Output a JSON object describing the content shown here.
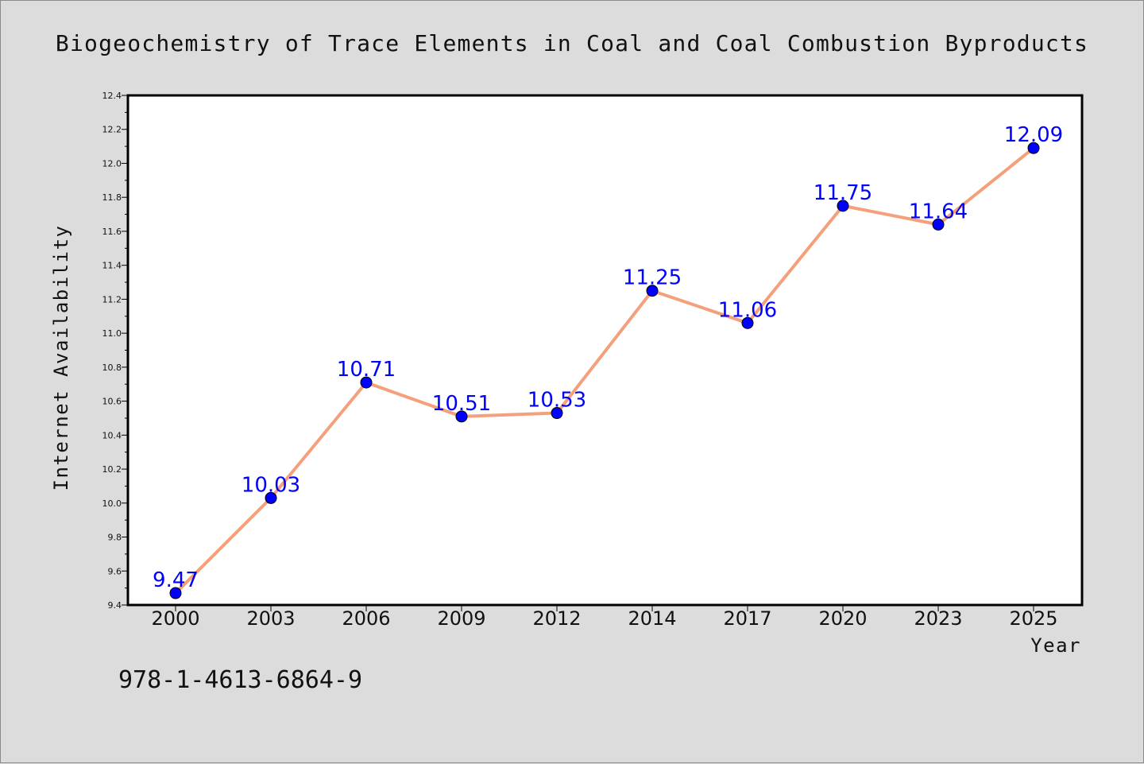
{
  "chart_data": {
    "type": "line",
    "title": "Biogeochemistry of Trace Elements in Coal and Coal Combustion Byproducts",
    "xlabel": "Year",
    "ylabel": "Internet Availability",
    "categories": [
      "2000",
      "2003",
      "2006",
      "2009",
      "2012",
      "2014",
      "2017",
      "2020",
      "2023",
      "2025"
    ],
    "values": [
      9.47,
      10.03,
      10.71,
      10.51,
      10.53,
      11.25,
      11.06,
      11.75,
      11.64,
      12.09
    ],
    "data_labels": [
      "9.47",
      "10.03",
      "10.71",
      "10.51",
      "10.53",
      "11.25",
      "11.06",
      "11.75",
      "11.64",
      "12.09"
    ],
    "ylim": [
      9.4,
      12.4
    ],
    "yticks": [
      "9.4",
      "9.6",
      "9.8",
      "10.0",
      "10.2",
      "10.4",
      "10.6",
      "10.8",
      "11.0",
      "11.2",
      "11.4",
      "11.6",
      "11.8",
      "12.0",
      "12.2",
      "12.4"
    ],
    "grid": false,
    "line_color": "#f4a07c",
    "marker_color": "#0000ff",
    "label_color": "#0000ff"
  },
  "footer": {
    "isbn": "978-1-4613-6864-9"
  }
}
